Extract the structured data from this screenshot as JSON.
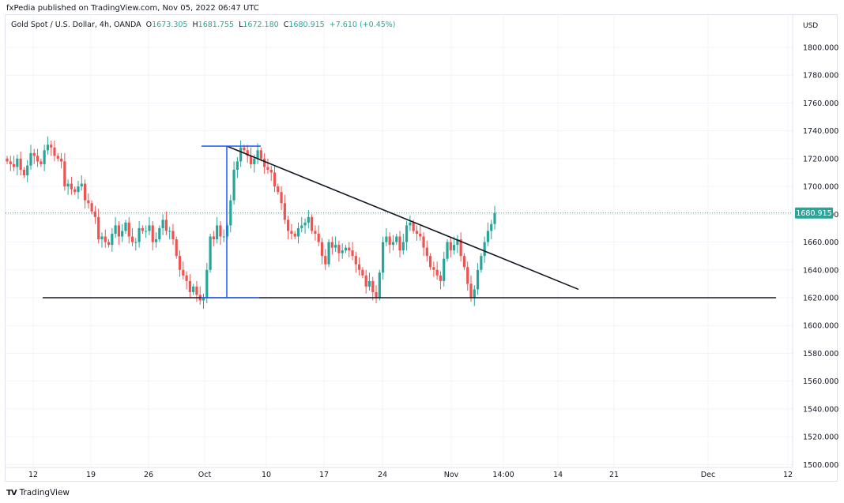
{
  "publisher_line": "fxPedia published on TradingView.com, Nov 05, 2022 06:47 UTC",
  "legend": {
    "symbol": "Gold Spot / U.S. Dollar, 4h, OANDA",
    "open_label": "O",
    "open": "1673.305",
    "high_label": "H",
    "high": "1681.755",
    "low_label": "L",
    "low": "1672.180",
    "close_label": "C",
    "close": "1680.915",
    "change": "+7.610 (+0.45%)"
  },
  "price_axis": {
    "currency": "USD",
    "last_price_label": "1680.915",
    "last_price_color": "#26a69a"
  },
  "footer": {
    "logo_mark": "TV",
    "brand": "TradingView"
  },
  "colors": {
    "up": "#26a69a",
    "down": "#ef5350",
    "trendline": "#131722",
    "measure": "#2962ff",
    "grid": "#f0f3fa"
  },
  "chart_data": {
    "type": "candlestick",
    "title": "Gold Spot / U.S. Dollar, 4h, OANDA",
    "xlabel": "",
    "ylabel": "USD",
    "ylim": [
      1500,
      1810
    ],
    "y_ticks": [
      1800,
      1780,
      1760,
      1740,
      1720,
      1700,
      1680,
      1660,
      1640,
      1620,
      1600,
      1580,
      1560,
      1540,
      1520,
      1500
    ],
    "x_ticks": [
      "12",
      "19",
      "26",
      "Oct",
      "10",
      "17",
      "24",
      "Nov",
      "14:00",
      "14",
      "21",
      "Dec",
      "12"
    ],
    "last_price": 1680.915,
    "ohlc_last": {
      "open": 1673.305,
      "high": 1681.755,
      "low": 1672.18,
      "close": 1680.915,
      "change": 7.61,
      "change_pct": 0.45
    },
    "approx_closes": [
      1718,
      1716,
      1714,
      1720,
      1712,
      1708,
      1715,
      1724,
      1722,
      1718,
      1716,
      1726,
      1730,
      1728,
      1722,
      1720,
      1718,
      1700,
      1702,
      1698,
      1696,
      1700,
      1702,
      1690,
      1688,
      1682,
      1678,
      1662,
      1664,
      1660,
      1658,
      1666,
      1672,
      1664,
      1668,
      1674,
      1664,
      1660,
      1660,
      1670,
      1668,
      1668,
      1672,
      1660,
      1662,
      1670,
      1676,
      1668,
      1668,
      1662,
      1650,
      1640,
      1636,
      1632,
      1624,
      1628,
      1622,
      1618,
      1620,
      1640,
      1664,
      1662,
      1672,
      1664,
      1664,
      1672,
      1690,
      1712,
      1718,
      1728,
      1726,
      1722,
      1716,
      1720,
      1726,
      1720,
      1714,
      1712,
      1710,
      1700,
      1696,
      1688,
      1676,
      1668,
      1666,
      1664,
      1670,
      1672,
      1674,
      1678,
      1668,
      1666,
      1660,
      1650,
      1644,
      1660,
      1656,
      1658,
      1652,
      1654,
      1656,
      1654,
      1650,
      1644,
      1640,
      1636,
      1628,
      1632,
      1624,
      1620,
      1638,
      1660,
      1664,
      1658,
      1660,
      1664,
      1654,
      1660,
      1672,
      1674,
      1668,
      1666,
      1664,
      1656,
      1650,
      1642,
      1640,
      1636,
      1632,
      1648,
      1660,
      1654,
      1658,
      1662,
      1650,
      1642,
      1630,
      1620,
      1626,
      1640,
      1650,
      1660,
      1668,
      1673,
      1681
    ],
    "drawings": [
      {
        "type": "horizontal_support",
        "price": 1620,
        "from": "Sep 9",
        "to": "Dec 12"
      },
      {
        "type": "descending_trendline",
        "from_price": 1729,
        "to_price": 1626,
        "from": "Oct 4",
        "to": "Nov 16"
      },
      {
        "type": "measure",
        "high": 1729,
        "low": 1620,
        "at": "Oct 4"
      }
    ]
  }
}
